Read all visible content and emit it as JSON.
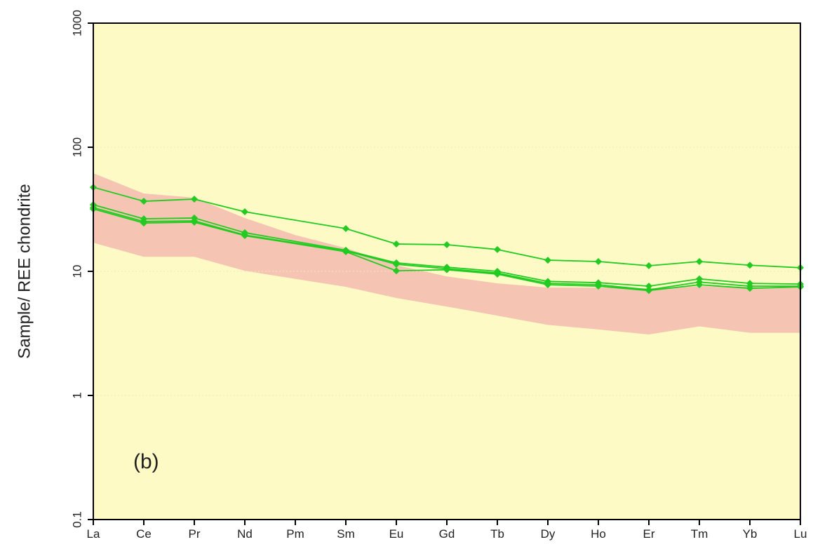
{
  "chart_data": {
    "type": "line",
    "y_label": "Sample/ REE chondrite",
    "annotation": "(b)",
    "categories": [
      "La",
      "Ce",
      "Pr",
      "Nd",
      "Pm",
      "Sm",
      "Eu",
      "Gd",
      "Tb",
      "Dy",
      "Ho",
      "Er",
      "Tm",
      "Yb",
      "Lu"
    ],
    "log_scale": true,
    "grid": true,
    "ylim": [
      0.1,
      1000
    ],
    "yticks": [
      0.1,
      1,
      10,
      100,
      1000
    ],
    "background": "#fdfac6",
    "band": {
      "color": "#f5c4b2",
      "upper": [
        61.8,
        42.4,
        39.2,
        26.9,
        19.6,
        15.4,
        11.2,
        9.1,
        8.0,
        7.4,
        7.4,
        7.3,
        7.6,
        7.5,
        7.4
      ],
      "lower": [
        17.0,
        13.1,
        13.1,
        10.1,
        8.7,
        7.5,
        6.1,
        5.2,
        4.4,
        3.7,
        3.4,
        3.1,
        3.6,
        3.2,
        3.2
      ]
    },
    "series": [
      {
        "color": "#1fcc1f",
        "values": [
          47.6,
          36.7,
          38.2,
          30.2,
          null,
          22.1,
          16.6,
          16.4,
          15.0,
          12.3,
          12.0,
          11.1,
          12.0,
          11.2,
          10.7
        ]
      },
      {
        "color": "#1fcc1f",
        "values": [
          34.4,
          26.5,
          26.9,
          20.5,
          null,
          14.8,
          11.7,
          10.8,
          10.0,
          8.3,
          8.1,
          7.6,
          8.7,
          8.0,
          7.9
        ]
      },
      {
        "color": "#1fcc1f",
        "values": [
          32.6,
          25.2,
          25.5,
          19.6,
          null,
          14.6,
          11.4,
          10.5,
          9.7,
          8.0,
          7.8,
          7.1,
          8.2,
          7.6,
          7.6
        ]
      },
      {
        "color": "#1fcc1f",
        "values": [
          31.8,
          24.5,
          24.9,
          19.4,
          null,
          14.4,
          10.1,
          10.3,
          9.5,
          7.8,
          7.6,
          7.0,
          7.8,
          7.3,
          7.5
        ]
      }
    ]
  }
}
